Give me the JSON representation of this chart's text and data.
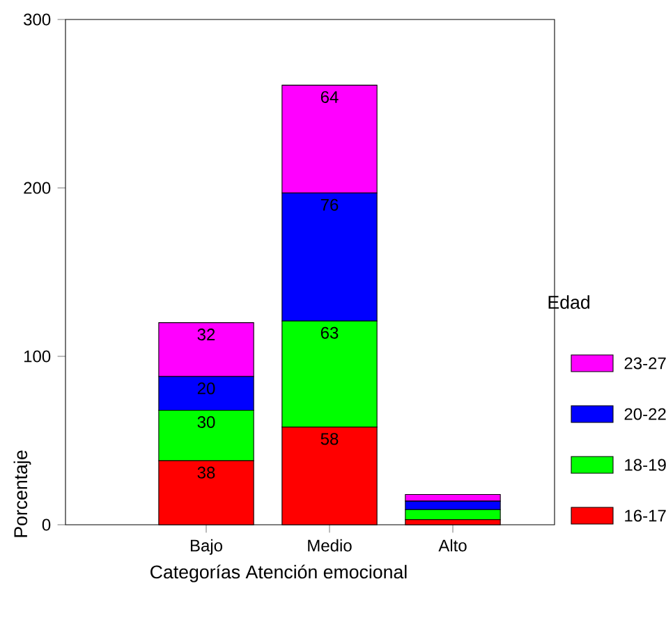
{
  "chart_data": {
    "type": "bar",
    "stacked": true,
    "xlabel": "Categorías Atención emocional",
    "ylabel": "Porcentaje",
    "legend_title": "Edad",
    "legend": "right",
    "categories": [
      "Bajo",
      "Medio",
      "Alto"
    ],
    "ylim": [
      0,
      300
    ],
    "yticks": [
      0,
      100,
      200,
      300
    ],
    "series": [
      {
        "name": "16-17",
        "color": "#ff0000",
        "values": [
          38,
          58,
          3
        ],
        "value_labels": [
          "38",
          "58",
          null
        ]
      },
      {
        "name": "18-19",
        "color": "#00ff00",
        "values": [
          30,
          63,
          6
        ],
        "value_labels": [
          "30",
          "63",
          null
        ]
      },
      {
        "name": "20-22",
        "color": "#0000ff",
        "values": [
          20,
          76,
          5
        ],
        "value_labels": [
          "20",
          "76",
          null
        ]
      },
      {
        "name": "23-27",
        "color": "#ff00ff",
        "values": [
          32,
          64,
          4
        ],
        "value_labels": [
          "32",
          "64",
          null
        ]
      }
    ]
  }
}
